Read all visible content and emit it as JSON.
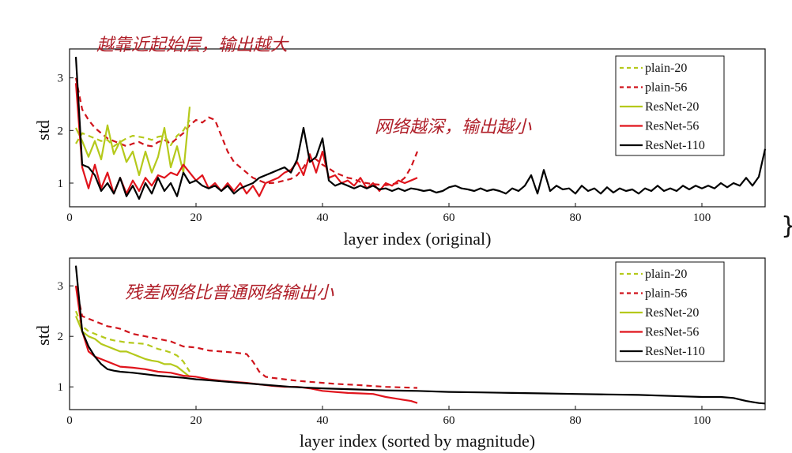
{
  "colors": {
    "plain": "#b5c91b",
    "resnet": "#e0141c",
    "plain56": "#d0141c",
    "resnet110": "#000000",
    "annotation": "#b0202a"
  },
  "annotations": {
    "top_left": "越靠近起始层，输出越大",
    "top_right": "网络越深，输出越小",
    "bottom": "残差网络比普通网络输出小"
  },
  "chart_data": [
    {
      "type": "line",
      "title": "",
      "xlabel": "layer index (original)",
      "ylabel": "std",
      "xlim": [
        0,
        110
      ],
      "ylim": [
        0.55,
        3.55
      ],
      "xticks": [
        0,
        20,
        40,
        60,
        80,
        100
      ],
      "yticks": [
        1,
        2,
        3
      ],
      "legend_position": "top-right",
      "series": [
        {
          "name": "plain-20",
          "style": "dashed",
          "color_key": "plain",
          "x": [
            1,
            2,
            3,
            4,
            5,
            6,
            7,
            8,
            9,
            10,
            11,
            12,
            13,
            14,
            15,
            16,
            17,
            18,
            19
          ],
          "y": [
            1.75,
            1.95,
            1.9,
            1.85,
            1.8,
            1.82,
            1.7,
            1.78,
            1.85,
            1.9,
            1.88,
            1.86,
            1.82,
            1.88,
            1.9,
            1.72,
            1.9,
            2.0,
            2.2
          ]
        },
        {
          "name": "plain-56",
          "style": "dashed",
          "color_key": "plain56",
          "x": [
            1,
            2,
            3,
            4,
            5,
            6,
            7,
            8,
            9,
            10,
            11,
            12,
            13,
            14,
            15,
            16,
            17,
            18,
            19,
            20,
            21,
            22,
            23,
            24,
            25,
            26,
            27,
            28,
            29,
            30,
            31,
            32,
            33,
            34,
            35,
            36,
            37,
            38,
            39,
            40,
            41,
            42,
            43,
            44,
            45,
            46,
            47,
            48,
            49,
            50,
            51,
            52,
            53,
            54,
            55
          ],
          "y": [
            3.0,
            2.4,
            2.2,
            2.05,
            1.95,
            1.85,
            1.8,
            1.75,
            1.7,
            1.75,
            1.78,
            1.72,
            1.7,
            1.78,
            1.82,
            1.75,
            1.85,
            1.95,
            2.1,
            2.2,
            2.15,
            2.25,
            2.2,
            1.9,
            1.6,
            1.4,
            1.3,
            1.2,
            1.1,
            1.05,
            1.0,
            1.0,
            1.02,
            1.05,
            1.08,
            1.15,
            1.3,
            1.5,
            1.45,
            1.35,
            1.28,
            1.2,
            1.15,
            1.1,
            1.08,
            1.02,
            1.0,
            0.98,
            0.97,
            0.96,
            0.98,
            1.0,
            1.1,
            1.3,
            1.6
          ]
        },
        {
          "name": "ResNet-20",
          "style": "solid",
          "color_key": "plain",
          "x": [
            1,
            2,
            3,
            4,
            5,
            6,
            7,
            8,
            9,
            10,
            11,
            12,
            13,
            14,
            15,
            16,
            17,
            18,
            19
          ],
          "y": [
            2.05,
            1.8,
            1.5,
            1.8,
            1.45,
            2.1,
            1.55,
            1.8,
            1.4,
            1.6,
            1.15,
            1.6,
            1.2,
            1.5,
            2.05,
            1.3,
            1.7,
            1.2,
            2.45
          ]
        },
        {
          "name": "ResNet-56",
          "style": "solid",
          "color_key": "resnet",
          "x": [
            1,
            2,
            3,
            4,
            5,
            6,
            7,
            8,
            9,
            10,
            11,
            12,
            13,
            14,
            15,
            16,
            17,
            18,
            19,
            20,
            21,
            22,
            23,
            24,
            25,
            26,
            27,
            28,
            29,
            30,
            31,
            32,
            33,
            34,
            35,
            36,
            37,
            38,
            39,
            40,
            41,
            42,
            43,
            44,
            45,
            46,
            47,
            48,
            49,
            50,
            51,
            52,
            53,
            54,
            55
          ],
          "y": [
            2.9,
            1.3,
            0.9,
            1.35,
            0.9,
            1.2,
            0.8,
            1.1,
            0.8,
            1.05,
            0.85,
            1.1,
            0.95,
            1.15,
            1.1,
            1.2,
            1.15,
            1.35,
            1.2,
            1.05,
            1.15,
            0.9,
            1.0,
            0.85,
            1.0,
            0.85,
            1.0,
            0.8,
            0.95,
            0.75,
            1.0,
            1.05,
            1.1,
            1.2,
            1.25,
            1.4,
            1.15,
            1.55,
            1.2,
            1.6,
            1.1,
            1.15,
            1.0,
            1.05,
            0.95,
            1.1,
            0.9,
            1.0,
            0.85,
            1.0,
            0.95,
            1.05,
            1.0,
            1.05,
            1.1
          ]
        },
        {
          "name": "ResNet-110",
          "style": "solid",
          "color_key": "resnet110",
          "x": [
            1,
            2,
            3,
            4,
            5,
            6,
            7,
            8,
            9,
            10,
            11,
            12,
            13,
            14,
            15,
            16,
            17,
            18,
            19,
            20,
            21,
            22,
            23,
            24,
            25,
            26,
            27,
            28,
            29,
            30,
            31,
            32,
            33,
            34,
            35,
            36,
            37,
            38,
            39,
            40,
            41,
            42,
            43,
            44,
            45,
            46,
            47,
            48,
            49,
            50,
            51,
            52,
            53,
            54,
            55,
            56,
            57,
            58,
            59,
            60,
            61,
            62,
            63,
            64,
            65,
            66,
            67,
            68,
            69,
            70,
            71,
            72,
            73,
            74,
            75,
            76,
            77,
            78,
            79,
            80,
            81,
            82,
            83,
            84,
            85,
            86,
            87,
            88,
            89,
            90,
            91,
            92,
            93,
            94,
            95,
            96,
            97,
            98,
            99,
            100,
            101,
            102,
            103,
            104,
            105,
            106,
            107,
            108,
            109,
            110
          ],
          "y": [
            3.4,
            1.35,
            1.3,
            1.15,
            0.85,
            1.0,
            0.8,
            1.1,
            0.75,
            0.95,
            0.7,
            1.0,
            0.8,
            1.1,
            0.85,
            1.0,
            0.75,
            1.2,
            1.0,
            1.05,
            0.95,
            0.9,
            0.95,
            0.85,
            0.95,
            0.8,
            0.9,
            0.95,
            1.0,
            1.1,
            1.15,
            1.2,
            1.25,
            1.3,
            1.2,
            1.45,
            2.05,
            1.4,
            1.5,
            1.85,
            1.05,
            0.95,
            1.0,
            0.95,
            0.9,
            0.95,
            0.9,
            0.95,
            0.88,
            0.9,
            0.85,
            0.9,
            0.85,
            0.9,
            0.88,
            0.85,
            0.87,
            0.82,
            0.85,
            0.92,
            0.95,
            0.9,
            0.88,
            0.85,
            0.9,
            0.85,
            0.88,
            0.85,
            0.8,
            0.9,
            0.85,
            0.95,
            1.15,
            0.8,
            1.25,
            0.85,
            0.95,
            0.88,
            0.9,
            0.8,
            0.95,
            0.85,
            0.9,
            0.8,
            0.92,
            0.82,
            0.9,
            0.85,
            0.88,
            0.8,
            0.9,
            0.85,
            0.95,
            0.85,
            0.9,
            0.85,
            0.95,
            0.88,
            0.95,
            0.9,
            0.95,
            0.9,
            1.0,
            0.92,
            1.0,
            0.95,
            1.1,
            0.95,
            1.12,
            1.65
          ]
        }
      ]
    },
    {
      "type": "line",
      "title": "",
      "xlabel": "layer index (sorted by magnitude)",
      "ylabel": "std",
      "xlim": [
        0,
        110
      ],
      "ylim": [
        0.55,
        3.55
      ],
      "xticks": [
        0,
        20,
        40,
        60,
        80,
        100
      ],
      "yticks": [
        1,
        2,
        3
      ],
      "legend_position": "top-right",
      "series": [
        {
          "name": "plain-20",
          "style": "dashed",
          "color_key": "plain",
          "x": [
            1,
            2,
            3,
            4,
            5,
            6,
            7,
            8,
            9,
            10,
            11,
            12,
            13,
            14,
            15,
            16,
            17,
            18,
            19
          ],
          "y": [
            2.5,
            2.2,
            2.1,
            2.05,
            2.0,
            1.95,
            1.92,
            1.9,
            1.88,
            1.87,
            1.86,
            1.85,
            1.8,
            1.75,
            1.72,
            1.68,
            1.62,
            1.5,
            1.3
          ]
        },
        {
          "name": "plain-56",
          "style": "dashed",
          "color_key": "plain56",
          "x": [
            1,
            2,
            3,
            4,
            5,
            6,
            7,
            8,
            9,
            10,
            12,
            14,
            16,
            18,
            20,
            22,
            24,
            26,
            28,
            29,
            30,
            31,
            32,
            34,
            36,
            38,
            40,
            42,
            45,
            50,
            55
          ],
          "y": [
            3.0,
            2.4,
            2.35,
            2.3,
            2.25,
            2.2,
            2.18,
            2.15,
            2.1,
            2.05,
            2.0,
            1.95,
            1.9,
            1.8,
            1.78,
            1.72,
            1.7,
            1.68,
            1.65,
            1.5,
            1.3,
            1.2,
            1.18,
            1.15,
            1.12,
            1.1,
            1.08,
            1.06,
            1.04,
            1.0,
            0.98
          ]
        },
        {
          "name": "ResNet-20",
          "style": "solid",
          "color_key": "plain",
          "x": [
            1,
            2,
            3,
            4,
            5,
            6,
            7,
            8,
            9,
            10,
            11,
            12,
            13,
            14,
            15,
            16,
            17,
            18,
            19
          ],
          "y": [
            2.4,
            2.1,
            2.0,
            1.95,
            1.85,
            1.8,
            1.75,
            1.7,
            1.7,
            1.65,
            1.6,
            1.55,
            1.52,
            1.5,
            1.45,
            1.45,
            1.4,
            1.3,
            1.2
          ]
        },
        {
          "name": "ResNet-56",
          "style": "solid",
          "color_key": "resnet",
          "x": [
            1,
            2,
            3,
            4,
            5,
            6,
            7,
            8,
            10,
            12,
            14,
            16,
            18,
            20,
            22,
            24,
            26,
            28,
            30,
            32,
            34,
            36,
            38,
            40,
            42,
            44,
            46,
            48,
            50,
            52,
            54,
            55
          ],
          "y": [
            3.0,
            2.1,
            1.7,
            1.6,
            1.55,
            1.5,
            1.45,
            1.4,
            1.38,
            1.35,
            1.3,
            1.28,
            1.22,
            1.2,
            1.15,
            1.12,
            1.1,
            1.08,
            1.05,
            1.02,
            1.0,
            1.0,
            0.97,
            0.92,
            0.9,
            0.88,
            0.87,
            0.86,
            0.8,
            0.76,
            0.72,
            0.68
          ]
        },
        {
          "name": "ResNet-110",
          "style": "solid",
          "color_key": "resnet110",
          "x": [
            1,
            2,
            3,
            4,
            5,
            6,
            7,
            8,
            10,
            12,
            14,
            16,
            18,
            20,
            25,
            30,
            35,
            40,
            45,
            50,
            55,
            60,
            65,
            70,
            75,
            80,
            85,
            90,
            95,
            100,
            103,
            105,
            107,
            108,
            109,
            110
          ],
          "y": [
            3.4,
            2.1,
            1.8,
            1.6,
            1.45,
            1.35,
            1.32,
            1.3,
            1.28,
            1.25,
            1.22,
            1.2,
            1.18,
            1.15,
            1.1,
            1.05,
            1.0,
            0.97,
            0.95,
            0.93,
            0.92,
            0.9,
            0.89,
            0.88,
            0.87,
            0.86,
            0.85,
            0.84,
            0.82,
            0.8,
            0.8,
            0.78,
            0.72,
            0.7,
            0.68,
            0.67
          ]
        }
      ]
    }
  ]
}
